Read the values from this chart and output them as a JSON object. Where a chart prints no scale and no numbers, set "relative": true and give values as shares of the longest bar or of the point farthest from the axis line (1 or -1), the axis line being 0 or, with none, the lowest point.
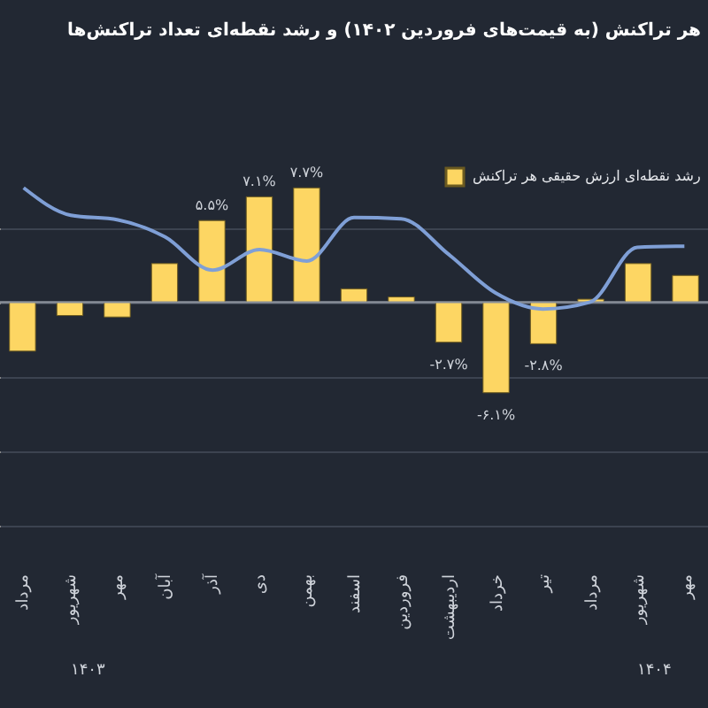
{
  "chart_data": [
    {
      "type": "bar",
      "title": "هر تراکنش (به قیمت‌های فروردین ۱۴۰۲) و رشد نقطه‌ای تعداد تراکنش‌ها",
      "grid": "y",
      "legend": "top right",
      "categories": [
        "مرداد",
        "شهریور",
        "مهر",
        "آبان",
        "آذر",
        "دی",
        "بهمن",
        "اسفند",
        "فروردین",
        "اردیبهشت",
        "خرداد",
        "تیر",
        "مرداد",
        "شهریور",
        "مهر"
      ],
      "series": [
        {
          "name": "رشد نقطه‌ای ارزش حقیقی هر تراکنش",
          "color": "#fdd663",
          "values": [
            -3.3,
            -0.9,
            -1.0,
            2.6,
            5.5,
            7.1,
            7.7,
            0.9,
            0.35,
            -2.7,
            -6.1,
            -2.8,
            0.2,
            2.6,
            1.8
          ],
          "value_labels": [
            null,
            null,
            null,
            null,
            "۵.۵%",
            "۷.۱%",
            "۷.۷%",
            null,
            null,
            "-۲.۷%",
            "-۶.۱%",
            "-۲.۸%",
            null,
            null,
            null
          ]
        }
      ],
      "annotations": [
        "۱۴۰۳",
        "۱۴۰۴"
      ]
    },
    {
      "type": "line",
      "relative": true,
      "categories": [
        null,
        null,
        null,
        null,
        null,
        null,
        null,
        null,
        null,
        null,
        null,
        null,
        null,
        null,
        null
      ],
      "series": [
        {
          "color": "#7f9fd6",
          "values": [
            1,
            0.76,
            0.72,
            0.57,
            0.28,
            0.46,
            0.36,
            0.74,
            0.73,
            0.42,
            0.08,
            -0.06,
            0,
            0.48,
            0.49
          ]
        }
      ]
    }
  ]
}
